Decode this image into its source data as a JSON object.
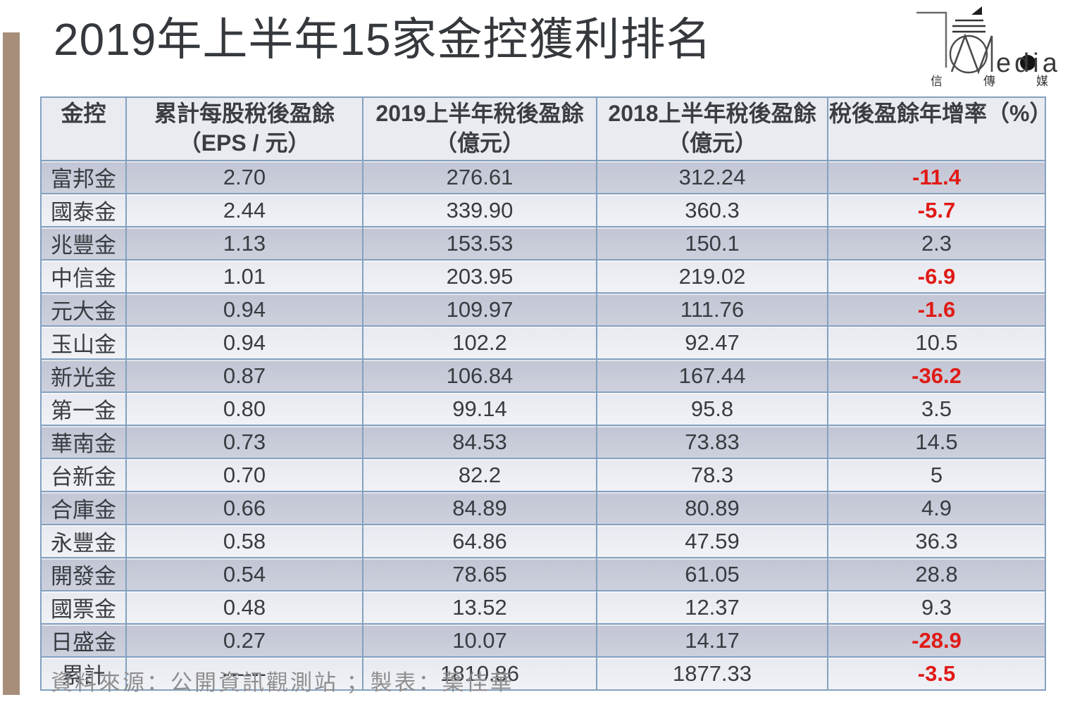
{
  "page": {
    "title": "2019年上半年15家金控獲利排名",
    "source_note": "資料來源：公開資訊觀測站 ；製表：葉佳華",
    "accent_bar_color": "#a68e7b"
  },
  "logo": {
    "brand_suffix": "edia",
    "cjk": [
      "信",
      "傳",
      "媒"
    ]
  },
  "colors": {
    "table_border": "#84a1c0",
    "header_bg": "#e9ebf1",
    "row_dark": "#c6c9d7",
    "row_light": "#ebedf3",
    "negative_value": "#e01a16",
    "text": "#3a3d42"
  },
  "table": {
    "header_lines": [
      [
        "金控",
        ""
      ],
      [
        "累計每股稅後盈餘",
        "（EPS / 元）"
      ],
      [
        "2019上半年稅後盈餘",
        "（億元）"
      ],
      [
        "2018上半年稅後盈餘",
        "（億元）"
      ],
      [
        "稅後盈餘年增率（%）",
        ""
      ]
    ]
  },
  "chart_data": {
    "type": "table",
    "title": "2019年上半年15家金控獲利排名",
    "columns": [
      "金控",
      "累計每股稅後盈餘（EPS / 元）",
      "2019上半年稅後盈餘（億元）",
      "2018上半年稅後盈餘（億元）",
      "稅後盈餘年增率（%）"
    ],
    "rows": [
      [
        "富邦金",
        "2.70",
        "276.61",
        "312.24",
        "-11.4"
      ],
      [
        "國泰金",
        "2.44",
        "339.90",
        "360.3",
        "-5.7"
      ],
      [
        "兆豐金",
        "1.13",
        "153.53",
        "150.1",
        "2.3"
      ],
      [
        "中信金",
        "1.01",
        "203.95",
        "219.02",
        "-6.9"
      ],
      [
        "元大金",
        "0.94",
        "109.97",
        "111.76",
        "-1.6"
      ],
      [
        "玉山金",
        "0.94",
        "102.2",
        "92.47",
        "10.5"
      ],
      [
        "新光金",
        "0.87",
        "106.84",
        "167.44",
        "-36.2"
      ],
      [
        "第一金",
        "0.80",
        "99.14",
        "95.8",
        "3.5"
      ],
      [
        "華南金",
        "0.73",
        "84.53",
        "73.83",
        "14.5"
      ],
      [
        "台新金",
        "0.70",
        "82.2",
        "78.3",
        "5"
      ],
      [
        "合庫金",
        "0.66",
        "84.89",
        "80.89",
        "4.9"
      ],
      [
        "永豐金",
        "0.58",
        "64.86",
        "47.59",
        "36.3"
      ],
      [
        "開發金",
        "0.54",
        "78.65",
        "61.05",
        "28.8"
      ],
      [
        "國票金",
        "0.48",
        "13.52",
        "12.37",
        "9.3"
      ],
      [
        "日盛金",
        "0.27",
        "10.07",
        "14.17",
        "-28.9"
      ],
      [
        "累計",
        "------",
        "1810.86",
        "1877.33",
        "-3.5"
      ]
    ],
    "source": "資料來源：公開資訊觀測站 ；製表：葉佳華"
  }
}
